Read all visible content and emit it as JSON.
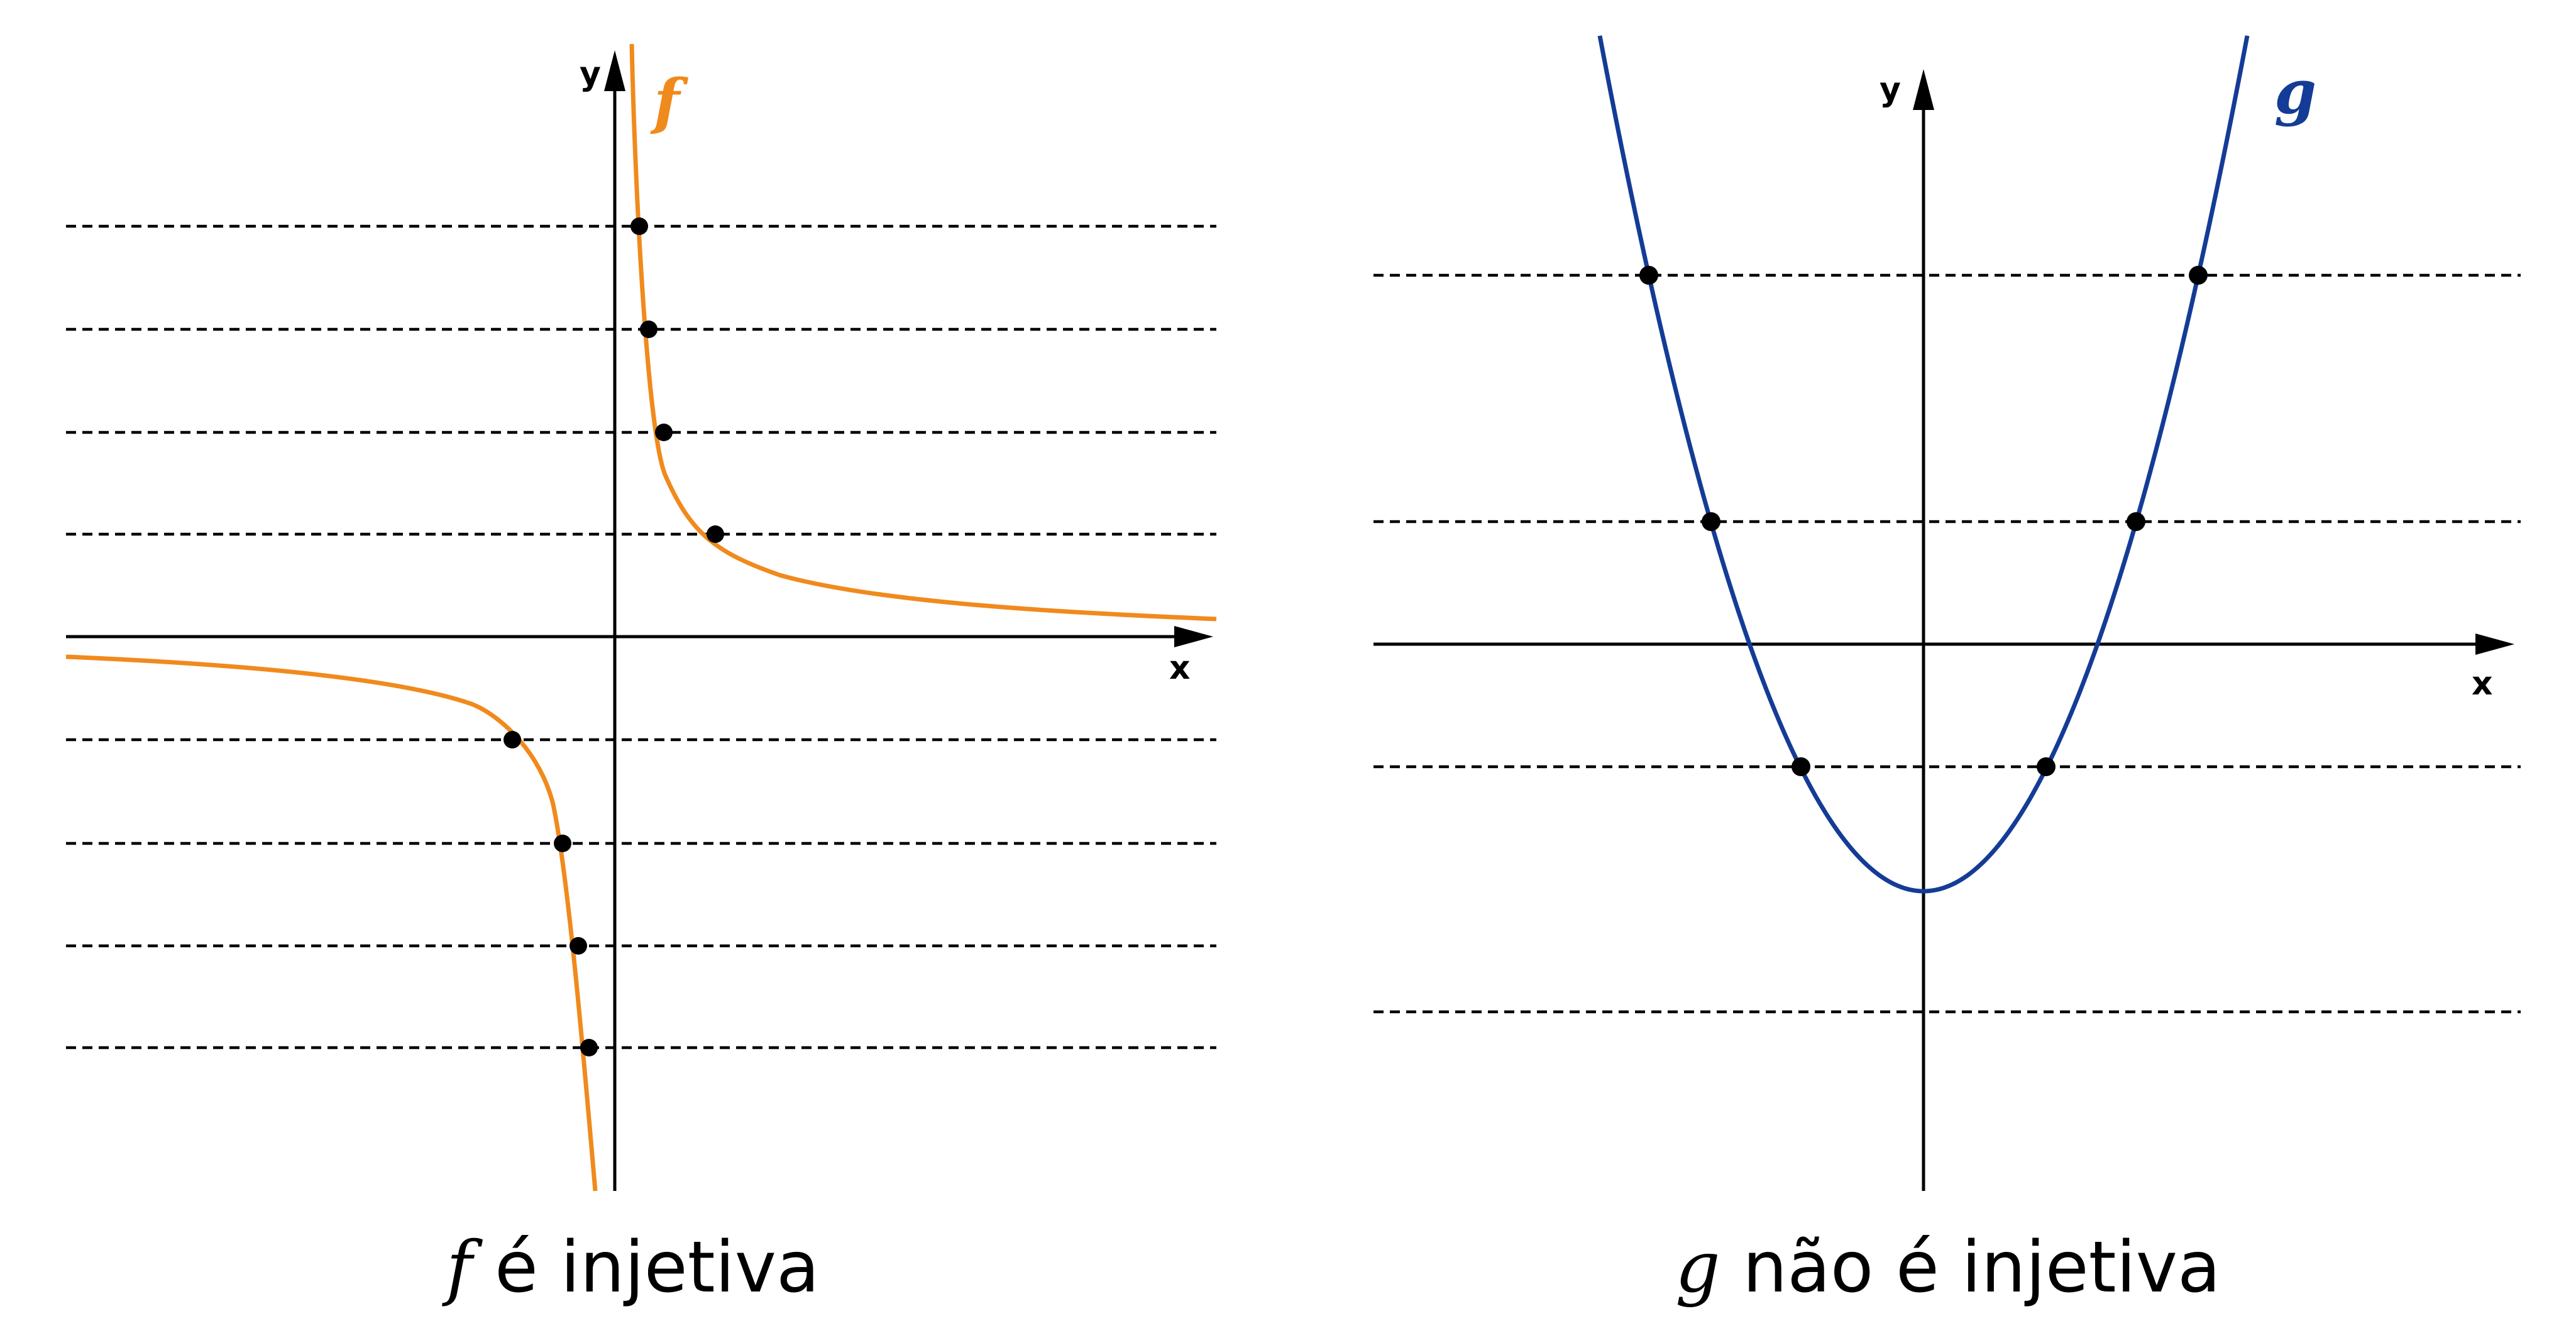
{
  "colors": {
    "f_curve": "#f08a1c",
    "g_curve": "#143c96",
    "lines": "#000000"
  },
  "left_panel": {
    "function_name": "f",
    "x_axis_label": "x",
    "y_axis_label": "y",
    "caption_function": "f",
    "caption_text": " é injetiva",
    "curve": "hyperbola y = k/x",
    "horizontal_lines": 8,
    "intersections_per_line": 1
  },
  "right_panel": {
    "function_name": "g",
    "x_axis_label": "x",
    "y_axis_label": "y",
    "caption_function": "g",
    "caption_text": " não é injetiva",
    "curve": "parabola opening upward",
    "horizontal_lines": 4,
    "intersections_per_line": [
      2,
      2,
      2,
      0
    ]
  }
}
